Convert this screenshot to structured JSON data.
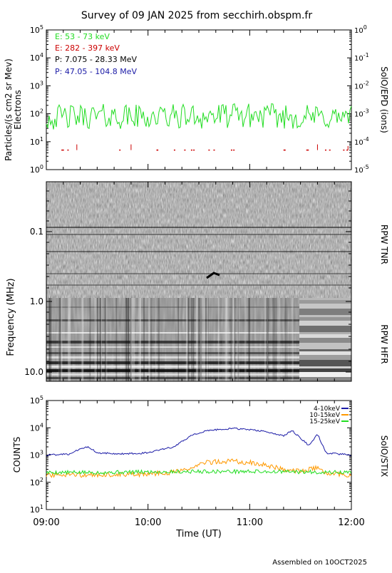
{
  "title": "Survey of 09 JAN 2025 from secchirh.obspm.fr",
  "footer": "Assembled on 10OCT2025",
  "colors": {
    "green": "#22dd22",
    "red": "#cc0000",
    "black": "#000000",
    "blue": "#1a1aa6",
    "orange": "#ff9900"
  },
  "epd": {
    "ylabel_left": [
      "Particles/(s cm2 sr Mev)",
      "Electrons"
    ],
    "ylabel_right": "SolO/EPD (ions)",
    "left_ticks": [
      "10^0",
      "10^1",
      "10^2",
      "10^3",
      "10^4",
      "10^5"
    ],
    "right_ticks": [
      "10^-5",
      "10^-4",
      "10^-3",
      "10^-2",
      "10^-1",
      "10^0"
    ],
    "legend": [
      {
        "text": "E: 53 - 73 keV",
        "color": "#22dd22"
      },
      {
        "text": "E: 282 - 397 keV",
        "color": "#cc0000"
      },
      {
        "text": "P: 7.075 - 28.33 MeV",
        "color": "#000000"
      },
      {
        "text": "P: 47.05 - 104.8 MeV",
        "color": "#1a1aa6"
      }
    ]
  },
  "rpw": {
    "ylabel": "Frequency (MHz)",
    "ticks": [
      "0.1",
      "1.0",
      "10.0"
    ],
    "label_tnr": "RPW TNR",
    "label_hfr": "RPW HFR"
  },
  "stix": {
    "ylabel": "COUNTS",
    "right_label": "SolO/STIX",
    "ticks": [
      "10^1",
      "10^2",
      "10^3",
      "10^4",
      "10^5"
    ],
    "legend": [
      {
        "text": "4-10keV",
        "color": "#1a1aa6"
      },
      {
        "text": "10-15keV",
        "color": "#ff9900"
      },
      {
        "text": "15-25keV",
        "color": "#22dd22"
      }
    ]
  },
  "xaxis": {
    "label": "Time (UT)",
    "ticks": [
      "09:00",
      "10:00",
      "11:00",
      "12:00"
    ]
  },
  "chart_data": [
    {
      "type": "line",
      "panel": "SolO/EPD",
      "yscale": "log",
      "ylim": [
        1,
        100000
      ],
      "xlim": [
        "09:00",
        "12:00"
      ],
      "series": [
        {
          "name": "E: 53 - 73 keV",
          "x": [
            "09:00",
            "09:30",
            "10:00",
            "10:30",
            "11:00",
            "11:30",
            "12:00"
          ],
          "values": [
            80,
            90,
            85,
            90,
            95,
            85,
            80
          ]
        },
        {
          "name": "E: 282 - 397 keV",
          "x": [
            "09:18",
            "09:30",
            "09:50",
            "10:35",
            "11:10",
            "11:40",
            "11:58"
          ],
          "values": [
            8,
            5,
            8,
            5,
            5,
            8,
            7
          ]
        }
      ]
    },
    {
      "type": "heatmap",
      "panel": "RPW TNR / HFR",
      "ylabel": "Frequency (MHz)",
      "yscale": "log",
      "xlim": [
        "09:00",
        "12:00"
      ]
    },
    {
      "type": "line",
      "panel": "SolO/STIX",
      "ylabel": "COUNTS",
      "yscale": "log",
      "ylim": [
        10,
        100000
      ],
      "xlim": [
        "09:00",
        "12:00"
      ],
      "series": [
        {
          "name": "4-10keV",
          "x": [
            "09:00",
            "09:15",
            "09:20",
            "09:25",
            "09:30",
            "09:45",
            "10:00",
            "10:15",
            "10:25",
            "10:35",
            "10:50",
            "11:05",
            "11:20",
            "11:25",
            "11:35",
            "11:40",
            "11:45",
            "12:00"
          ],
          "values": [
            1000,
            1100,
            1800,
            2000,
            1200,
            1100,
            1200,
            2000,
            5000,
            8000,
            9500,
            8000,
            5000,
            8000,
            2200,
            6000,
            1200,
            1000
          ]
        },
        {
          "name": "10-15keV",
          "x": [
            "09:00",
            "09:30",
            "10:00",
            "10:20",
            "10:35",
            "10:50",
            "11:05",
            "11:20",
            "11:30",
            "11:40",
            "11:45",
            "12:00"
          ],
          "values": [
            180,
            190,
            200,
            250,
            550,
            600,
            500,
            300,
            250,
            350,
            200,
            190
          ]
        },
        {
          "name": "15-25keV",
          "x": [
            "09:00",
            "09:30",
            "10:00",
            "10:30",
            "11:00",
            "11:30",
            "12:00"
          ],
          "values": [
            230,
            230,
            240,
            250,
            250,
            240,
            230
          ]
        }
      ]
    }
  ]
}
